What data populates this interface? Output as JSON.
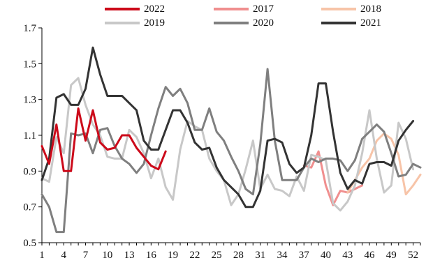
{
  "chart_data": {
    "type": "line",
    "title": "",
    "xlabel": "",
    "ylabel": "",
    "ylim": [
      0.5,
      1.7
    ],
    "xlim": [
      1,
      53
    ],
    "y_ticks": [
      "0.5",
      "0.7",
      "0.9",
      "1.1",
      "1.3",
      "1.5",
      "1.7"
    ],
    "x_ticks": [
      "1",
      "4",
      "7",
      "10",
      "13",
      "16",
      "19",
      "22",
      "25",
      "28",
      "31",
      "34",
      "37",
      "40",
      "43",
      "46",
      "49",
      "52"
    ],
    "legend_position": "top",
    "grid": false,
    "series": [
      {
        "name": "2022",
        "color": "#cc0a1a",
        "width": 3,
        "points": [
          [
            1,
            1.04
          ],
          [
            2,
            0.94
          ],
          [
            3,
            1.16
          ],
          [
            4,
            0.9
          ],
          [
            5,
            0.9
          ],
          [
            6,
            1.25
          ],
          [
            7,
            1.07
          ],
          [
            8,
            1.24
          ],
          [
            9,
            1.06
          ],
          [
            10,
            1.02
          ],
          [
            11,
            1.03
          ],
          [
            12,
            1.1
          ],
          [
            13,
            1.1
          ],
          [
            14,
            1.03
          ],
          [
            15,
            0.98
          ],
          [
            16,
            0.93
          ],
          [
            17,
            0.91
          ],
          [
            18,
            1.01
          ]
        ]
      },
      {
        "name": "2017",
        "color": "#f08f8f",
        "width": 3,
        "points": [
          [
            37,
            0.93
          ],
          [
            38,
            0.92
          ],
          [
            39,
            1.01
          ],
          [
            40,
            0.82
          ],
          [
            41,
            0.71
          ],
          [
            42,
            0.79
          ],
          [
            43,
            0.78
          ],
          [
            44,
            0.8
          ],
          [
            45,
            0.82
          ]
        ]
      },
      {
        "name": "2018",
        "color": "#f7c4a8",
        "width": 3,
        "points": [
          [
            43,
            0.78
          ],
          [
            44,
            0.85
          ],
          [
            45,
            0.92
          ],
          [
            46,
            0.97
          ],
          [
            47,
            1.07
          ],
          [
            48,
            1.11
          ],
          [
            49,
            1.08
          ],
          [
            50,
            0.99
          ],
          [
            51,
            0.77
          ],
          [
            52,
            0.82
          ],
          [
            53,
            0.88
          ]
        ]
      },
      {
        "name": "2019",
        "color": "#c8c8c8",
        "width": 3,
        "points": [
          [
            1,
            0.86
          ],
          [
            2,
            0.84
          ],
          [
            3,
            1.09
          ],
          [
            4,
            1.0
          ],
          [
            5,
            1.38
          ],
          [
            6,
            1.42
          ],
          [
            7,
            1.27
          ],
          [
            8,
            1.16
          ],
          [
            9,
            1.1
          ],
          [
            10,
            0.98
          ],
          [
            11,
            0.97
          ],
          [
            12,
            0.97
          ],
          [
            13,
            1.13
          ],
          [
            14,
            1.09
          ],
          [
            15,
            1.0
          ],
          [
            16,
            0.86
          ],
          [
            17,
            0.97
          ],
          [
            18,
            0.81
          ],
          [
            19,
            0.74
          ],
          [
            20,
            1.02
          ],
          [
            21,
            1.18
          ],
          [
            22,
            1.15
          ],
          [
            23,
            1.13
          ],
          [
            24,
            0.97
          ],
          [
            25,
            0.9
          ],
          [
            26,
            0.85
          ],
          [
            27,
            0.71
          ],
          [
            28,
            0.77
          ],
          [
            29,
            0.91
          ],
          [
            30,
            1.07
          ],
          [
            31,
            0.8
          ],
          [
            32,
            0.88
          ],
          [
            33,
            0.8
          ],
          [
            34,
            0.79
          ],
          [
            35,
            0.76
          ],
          [
            36,
            0.87
          ],
          [
            37,
            0.79
          ],
          [
            38,
            0.99
          ],
          [
            39,
            0.98
          ],
          [
            40,
            0.96
          ],
          [
            41,
            0.72
          ],
          [
            42,
            0.68
          ],
          [
            43,
            0.73
          ],
          [
            44,
            0.82
          ],
          [
            45,
            1.0
          ],
          [
            46,
            1.24
          ],
          [
            47,
            0.97
          ],
          [
            48,
            0.78
          ],
          [
            49,
            0.82
          ],
          [
            50,
            1.17
          ],
          [
            51,
            1.08
          ],
          [
            52,
            0.91
          ]
        ]
      },
      {
        "name": "2020",
        "color": "#7f7f7f",
        "width": 3,
        "points": [
          [
            1,
            0.77
          ],
          [
            2,
            0.7
          ],
          [
            3,
            0.56
          ],
          [
            4,
            0.56
          ],
          [
            5,
            1.11
          ],
          [
            6,
            1.1
          ],
          [
            7,
            1.11
          ],
          [
            8,
            1.0
          ],
          [
            9,
            1.13
          ],
          [
            10,
            1.14
          ],
          [
            11,
            1.04
          ],
          [
            12,
            0.97
          ],
          [
            13,
            0.94
          ],
          [
            14,
            0.89
          ],
          [
            15,
            0.94
          ],
          [
            16,
            1.1
          ],
          [
            17,
            1.25
          ],
          [
            18,
            1.37
          ],
          [
            19,
            1.32
          ],
          [
            20,
            1.36
          ],
          [
            21,
            1.28
          ],
          [
            22,
            1.13
          ],
          [
            23,
            1.13
          ],
          [
            24,
            1.25
          ],
          [
            25,
            1.12
          ],
          [
            26,
            1.07
          ],
          [
            27,
            0.98
          ],
          [
            28,
            0.9
          ],
          [
            29,
            0.8
          ],
          [
            30,
            0.77
          ],
          [
            31,
            1.05
          ],
          [
            32,
            1.47
          ],
          [
            33,
            1.07
          ],
          [
            34,
            0.85
          ],
          [
            35,
            0.85
          ],
          [
            36,
            0.85
          ],
          [
            37,
            0.92
          ],
          [
            38,
            0.97
          ],
          [
            39,
            0.95
          ],
          [
            40,
            0.97
          ],
          [
            41,
            0.97
          ],
          [
            42,
            0.96
          ],
          [
            43,
            0.9
          ],
          [
            44,
            0.96
          ],
          [
            45,
            1.08
          ],
          [
            46,
            1.12
          ],
          [
            47,
            1.16
          ],
          [
            48,
            1.12
          ],
          [
            49,
            1.0
          ],
          [
            50,
            0.87
          ],
          [
            51,
            0.88
          ],
          [
            52,
            0.94
          ],
          [
            53,
            0.92
          ]
        ]
      },
      {
        "name": "2021",
        "color": "#333333",
        "width": 3,
        "points": [
          [
            1,
            0.85
          ],
          [
            2,
            0.97
          ],
          [
            3,
            1.31
          ],
          [
            4,
            1.33
          ],
          [
            5,
            1.27
          ],
          [
            6,
            1.27
          ],
          [
            7,
            1.36
          ],
          [
            8,
            1.59
          ],
          [
            9,
            1.44
          ],
          [
            10,
            1.32
          ],
          [
            11,
            1.32
          ],
          [
            12,
            1.32
          ],
          [
            13,
            1.28
          ],
          [
            14,
            1.24
          ],
          [
            15,
            1.07
          ],
          [
            16,
            1.02
          ],
          [
            17,
            1.02
          ],
          [
            18,
            1.13
          ],
          [
            19,
            1.24
          ],
          [
            20,
            1.24
          ],
          [
            21,
            1.17
          ],
          [
            22,
            1.06
          ],
          [
            23,
            1.02
          ],
          [
            24,
            1.03
          ],
          [
            25,
            0.92
          ],
          [
            26,
            0.85
          ],
          [
            27,
            0.81
          ],
          [
            28,
            0.77
          ],
          [
            29,
            0.7
          ],
          [
            30,
            0.7
          ],
          [
            31,
            0.79
          ],
          [
            32,
            1.07
          ],
          [
            33,
            1.08
          ],
          [
            34,
            1.06
          ],
          [
            35,
            0.94
          ],
          [
            36,
            0.89
          ],
          [
            37,
            0.92
          ],
          [
            38,
            1.1
          ],
          [
            39,
            1.39
          ],
          [
            40,
            1.39
          ],
          [
            41,
            1.12
          ],
          [
            42,
            0.89
          ],
          [
            43,
            0.8
          ],
          [
            44,
            0.85
          ],
          [
            45,
            0.83
          ],
          [
            46,
            0.94
          ],
          [
            47,
            0.95
          ],
          [
            48,
            0.95
          ],
          [
            49,
            0.93
          ],
          [
            50,
            1.07
          ],
          [
            51,
            1.13
          ],
          [
            52,
            1.18
          ]
        ]
      }
    ]
  },
  "legend": [
    {
      "label": "2022",
      "color": "#cc0a1a"
    },
    {
      "label": "2017",
      "color": "#f08f8f"
    },
    {
      "label": "2018",
      "color": "#f7c4a8"
    },
    {
      "label": "2019",
      "color": "#c8c8c8"
    },
    {
      "label": "2020",
      "color": "#7f7f7f"
    },
    {
      "label": "2021",
      "color": "#333333"
    }
  ]
}
